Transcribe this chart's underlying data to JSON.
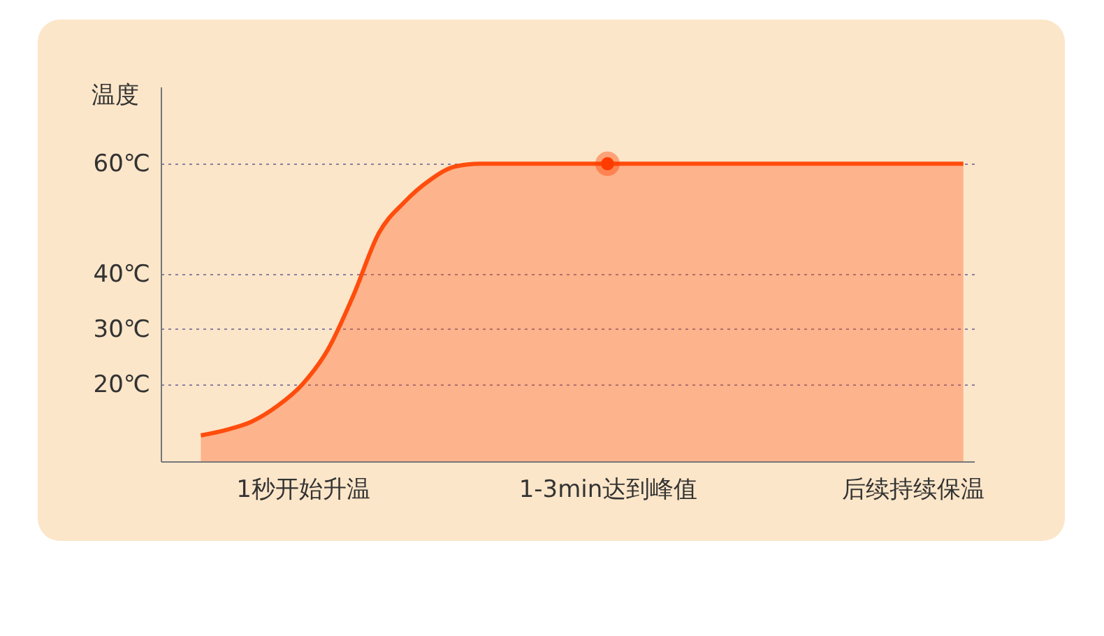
{
  "chart_data": {
    "type": "area",
    "ylabel": "温度",
    "categories": [
      null,
      null,
      null,
      null,
      "1秒开始升温",
      null,
      null,
      null,
      null,
      null,
      null,
      null,
      null,
      null,
      null,
      null,
      "1-3min达到峰值",
      null,
      null,
      null,
      null,
      null,
      null,
      null,
      null,
      null,
      null,
      null,
      "后续持续保温",
      null,
      null
    ],
    "series": [
      {
        "color": "#ff4d0d",
        "values": [
          10.7,
          11.7,
          13.2,
          16,
          20,
          26.3,
          36.1,
          47.4,
          53,
          57,
          59.5,
          60,
          60,
          60,
          60,
          60,
          60,
          60,
          60,
          60,
          60,
          60,
          60,
          60,
          60,
          60,
          60,
          60,
          60,
          60,
          60
        ]
      },
      {
        "type": "scatter",
        "color": "#ff3c00",
        "marker": "circle",
        "x": [
          "1-3min达到峰值"
        ],
        "values": [
          60
        ]
      }
    ],
    "ylim": [
      6,
      74
    ],
    "yticks": [
      {
        "value": 20,
        "label": "20℃"
      },
      {
        "value": 30,
        "label": "30℃"
      },
      {
        "value": 40,
        "label": "40℃"
      },
      {
        "value": 60,
        "label": "60℃"
      }
    ],
    "grid": "y"
  }
}
